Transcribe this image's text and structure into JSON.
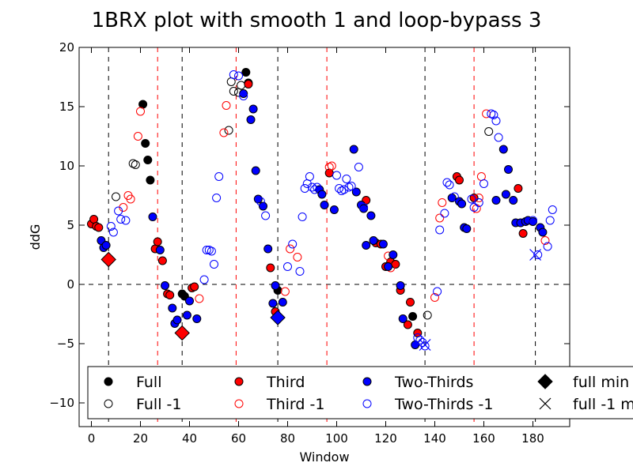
{
  "chart_data": {
    "type": "scatter",
    "title": "1BRX plot with smooth 1 and loop-bypass 3",
    "xlabel": "Window",
    "ylabel": "ddG",
    "xlim": [
      -5,
      195
    ],
    "ylim": [
      -12,
      20
    ],
    "xticks": [
      "0",
      "20",
      "40",
      "60",
      "80",
      "100",
      "120",
      "140",
      "160",
      "180"
    ],
    "yticks": [
      "−10",
      "−5",
      "0",
      "5",
      "10",
      "15",
      "20"
    ],
    "hline_y": 0,
    "black_vlines_x": [
      7,
      37,
      76,
      136,
      181
    ],
    "red_vlines_x": [
      27,
      59,
      96,
      156
    ],
    "legend_placement": "lower center",
    "colors": {
      "full": "#000000",
      "third": "#ff0000",
      "two_thirds": "#0000ff"
    },
    "series": [
      {
        "name": "Full",
        "marker": "filled-circle",
        "fill": "#000000",
        "points": [
          [
            21,
            15.2
          ],
          [
            22,
            11.9
          ],
          [
            23,
            10.5
          ],
          [
            24,
            8.8
          ],
          [
            37,
            -0.8
          ],
          [
            38,
            -1.0
          ],
          [
            63,
            17.9
          ],
          [
            64,
            17.0
          ],
          [
            76,
            -0.5
          ],
          [
            131,
            -2.7
          ]
        ]
      },
      {
        "name": "Full -1",
        "marker": "open-circle",
        "stroke": "#000000",
        "points": [
          [
            10,
            7.4
          ],
          [
            17,
            10.2
          ],
          [
            18,
            10.1
          ],
          [
            56,
            13.0
          ],
          [
            57,
            17.1
          ],
          [
            58,
            16.3
          ],
          [
            60,
            16.2
          ],
          [
            61,
            16.8
          ],
          [
            137,
            -2.6
          ],
          [
            162,
            12.9
          ]
        ]
      },
      {
        "name": "Third",
        "marker": "filled-circle",
        "fill": "#ff0000",
        "points": [
          [
            0,
            5.1
          ],
          [
            1,
            5.5
          ],
          [
            2,
            4.9
          ],
          [
            3,
            4.8
          ],
          [
            26,
            3.0
          ],
          [
            27,
            3.6
          ],
          [
            29,
            2.0
          ],
          [
            31,
            -0.8
          ],
          [
            32,
            -0.9
          ],
          [
            41,
            -0.3
          ],
          [
            42,
            -0.2
          ],
          [
            64,
            16.9
          ],
          [
            73,
            1.4
          ],
          [
            75,
            -2.3
          ],
          [
            97,
            9.4
          ],
          [
            112,
            7.1
          ],
          [
            116,
            3.5
          ],
          [
            118,
            3.4
          ],
          [
            120,
            1.5
          ],
          [
            122,
            1.9
          ],
          [
            124,
            1.7
          ],
          [
            126,
            -0.5
          ],
          [
            129,
            -3.4
          ],
          [
            130,
            -1.5
          ],
          [
            133,
            -4.1
          ],
          [
            149,
            9.1
          ],
          [
            150,
            8.8
          ],
          [
            156,
            7.3
          ],
          [
            174,
            8.1
          ],
          [
            176,
            4.3
          ]
        ]
      },
      {
        "name": "Third -1",
        "marker": "open-circle",
        "stroke": "#ff0000",
        "points": [
          [
            13,
            6.5
          ],
          [
            15,
            7.5
          ],
          [
            16,
            7.2
          ],
          [
            19,
            12.5
          ],
          [
            20,
            14.6
          ],
          [
            44,
            -1.2
          ],
          [
            54,
            12.8
          ],
          [
            55,
            15.1
          ],
          [
            79,
            -0.6
          ],
          [
            81,
            3.0
          ],
          [
            84,
            2.3
          ],
          [
            97,
            9.9
          ],
          [
            98,
            10.0
          ],
          [
            121,
            2.4
          ],
          [
            122,
            1.4
          ],
          [
            140,
            -1.1
          ],
          [
            142,
            5.6
          ],
          [
            143,
            6.9
          ],
          [
            157,
            6.4
          ],
          [
            158,
            7.3
          ],
          [
            159,
            9.1
          ],
          [
            161,
            14.4
          ],
          [
            185,
            3.7
          ]
        ]
      },
      {
        "name": "Two-Thirds",
        "marker": "filled-circle",
        "fill": "#0000ff",
        "points": [
          [
            4,
            3.7
          ],
          [
            5,
            3.1
          ],
          [
            6,
            3.3
          ],
          [
            25,
            5.7
          ],
          [
            28,
            2.9
          ],
          [
            30,
            -0.1
          ],
          [
            33,
            -2.0
          ],
          [
            34,
            -3.3
          ],
          [
            35,
            -3.0
          ],
          [
            39,
            -2.6
          ],
          [
            40,
            -1.4
          ],
          [
            43,
            -2.9
          ],
          [
            62,
            16.1
          ],
          [
            65,
            13.9
          ],
          [
            66,
            14.8
          ],
          [
            67,
            9.6
          ],
          [
            68,
            7.2
          ],
          [
            70,
            6.6
          ],
          [
            72,
            3.0
          ],
          [
            74,
            -1.6
          ],
          [
            75,
            -0.1
          ],
          [
            78,
            -1.5
          ],
          [
            93,
            8.0
          ],
          [
            94,
            7.6
          ],
          [
            95,
            6.7
          ],
          [
            99,
            6.3
          ],
          [
            107,
            11.4
          ],
          [
            108,
            7.8
          ],
          [
            110,
            6.7
          ],
          [
            111,
            6.4
          ],
          [
            112,
            3.3
          ],
          [
            114,
            5.8
          ],
          [
            115,
            3.7
          ],
          [
            119,
            3.4
          ],
          [
            121,
            1.5
          ],
          [
            123,
            2.5
          ],
          [
            126,
            -0.1
          ],
          [
            127,
            -2.9
          ],
          [
            132,
            -5.1
          ],
          [
            147,
            7.3
          ],
          [
            150,
            7.0
          ],
          [
            151,
            6.8
          ],
          [
            152,
            4.8
          ],
          [
            153,
            4.7
          ],
          [
            165,
            7.1
          ],
          [
            168,
            11.4
          ],
          [
            169,
            7.6
          ],
          [
            170,
            9.7
          ],
          [
            172,
            7.1
          ],
          [
            173,
            5.2
          ],
          [
            175,
            5.2
          ],
          [
            177,
            5.3
          ],
          [
            178,
            5.4
          ],
          [
            180,
            5.3
          ],
          [
            183,
            4.8
          ],
          [
            184,
            4.4
          ]
        ]
      },
      {
        "name": "Two-Thirds -1",
        "marker": "open-circle",
        "stroke": "#0000ff",
        "points": [
          [
            8,
            4.9
          ],
          [
            9,
            4.4
          ],
          [
            11,
            6.2
          ],
          [
            12,
            5.5
          ],
          [
            14,
            5.4
          ],
          [
            46,
            0.4
          ],
          [
            47,
            2.9
          ],
          [
            48,
            2.9
          ],
          [
            49,
            2.8
          ],
          [
            50,
            1.7
          ],
          [
            51,
            7.3
          ],
          [
            52,
            9.1
          ],
          [
            58,
            17.7
          ],
          [
            60,
            17.6
          ],
          [
            62,
            15.9
          ],
          [
            69,
            7.0
          ],
          [
            71,
            5.8
          ],
          [
            80,
            1.5
          ],
          [
            82,
            3.4
          ],
          [
            85,
            1.1
          ],
          [
            86,
            5.7
          ],
          [
            87,
            8.1
          ],
          [
            88,
            8.5
          ],
          [
            89,
            9.1
          ],
          [
            90,
            8.2
          ],
          [
            91,
            8.0
          ],
          [
            92,
            8.2
          ],
          [
            100,
            9.2
          ],
          [
            101,
            8.1
          ],
          [
            102,
            7.9
          ],
          [
            103,
            8.0
          ],
          [
            104,
            8.9
          ],
          [
            105,
            8.2
          ],
          [
            106,
            8.3
          ],
          [
            109,
            9.9
          ],
          [
            111,
            6.5
          ],
          [
            133,
            -4.5
          ],
          [
            134,
            -4.7
          ],
          [
            135,
            -4.9
          ],
          [
            136,
            -5.2
          ],
          [
            141,
            -0.6
          ],
          [
            142,
            4.6
          ],
          [
            144,
            6.0
          ],
          [
            145,
            8.6
          ],
          [
            146,
            8.4
          ],
          [
            148,
            7.4
          ],
          [
            155,
            7.2
          ],
          [
            156,
            6.5
          ],
          [
            158,
            6.9
          ],
          [
            160,
            8.5
          ],
          [
            163,
            14.4
          ],
          [
            164,
            14.3
          ],
          [
            165,
            13.8
          ],
          [
            166,
            12.4
          ],
          [
            180,
            5.4
          ],
          [
            182,
            2.5
          ],
          [
            186,
            3.2
          ],
          [
            187,
            5.4
          ],
          [
            188,
            6.3
          ]
        ]
      },
      {
        "name": "full min",
        "marker": "filled-diamond",
        "points": [
          {
            "x": 7,
            "y": 2.1,
            "color": "#ff0000"
          },
          {
            "x": 37,
            "y": -4.1,
            "color": "#ff0000"
          },
          {
            "x": 76,
            "y": -2.8,
            "color": "#0000ff"
          }
        ]
      },
      {
        "name": "full -1 m",
        "marker": "x",
        "points": [
          {
            "x": 136,
            "y": -5.1,
            "color": "#0000ff"
          },
          {
            "x": 181,
            "y": 2.5,
            "color": "#0000ff"
          }
        ]
      }
    ]
  }
}
